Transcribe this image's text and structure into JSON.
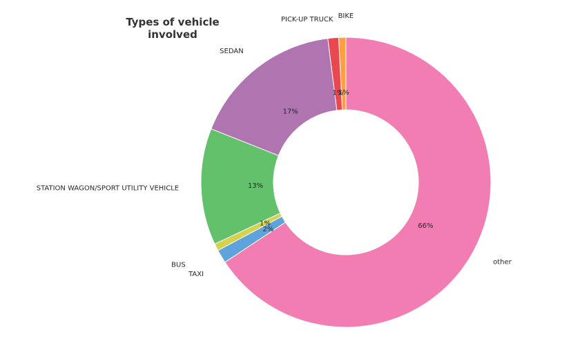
{
  "chart_data": {
    "type": "pie",
    "style": "donut",
    "title_lines": [
      "Types of vehicle",
      "involved"
    ],
    "start_angle_deg": 90,
    "direction": "counterclockwise",
    "slices": [
      {
        "label": "BIKE",
        "value": 0.8,
        "pct_label": "1%",
        "color": "#ff9f40"
      },
      {
        "label": "PICK-UP TRUCK",
        "value": 1.2,
        "pct_label": "1%",
        "color": "#e8484f"
      },
      {
        "label": "SEDAN",
        "value": 17.0,
        "pct_label": "17%",
        "color": "#b074b1"
      },
      {
        "label": "STATION WAGON/SPORT UTILITY VEHICLE",
        "value": 13.0,
        "pct_label": "13%",
        "color": "#62c16a"
      },
      {
        "label": "BUS",
        "value": 0.8,
        "pct_label": "1%",
        "color": "#d5d24e"
      },
      {
        "label": "TAXI",
        "value": 1.5,
        "pct_label": "2%",
        "color": "#5fa3dc"
      },
      {
        "label": "other",
        "value": 65.7,
        "pct_label": "66%",
        "color": "#f27db2"
      }
    ]
  }
}
